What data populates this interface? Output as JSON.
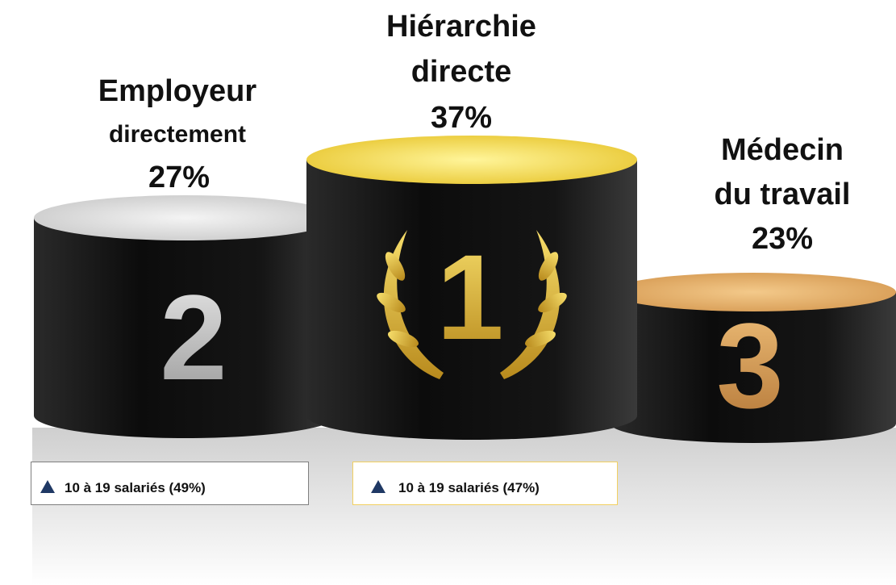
{
  "podiums": [
    {
      "rank": "2",
      "lines": [
        "Employeur",
        "directement"
      ],
      "value": "27%",
      "note": "10 à 19 salariés (49%)"
    },
    {
      "rank": "1",
      "lines": [
        "Hiérarchie",
        "directe"
      ],
      "value": "37%",
      "note": "10 à 19 salariés (47%)"
    },
    {
      "rank": "3",
      "lines": [
        "Médecin",
        "du travail"
      ],
      "value": "23%"
    }
  ]
}
